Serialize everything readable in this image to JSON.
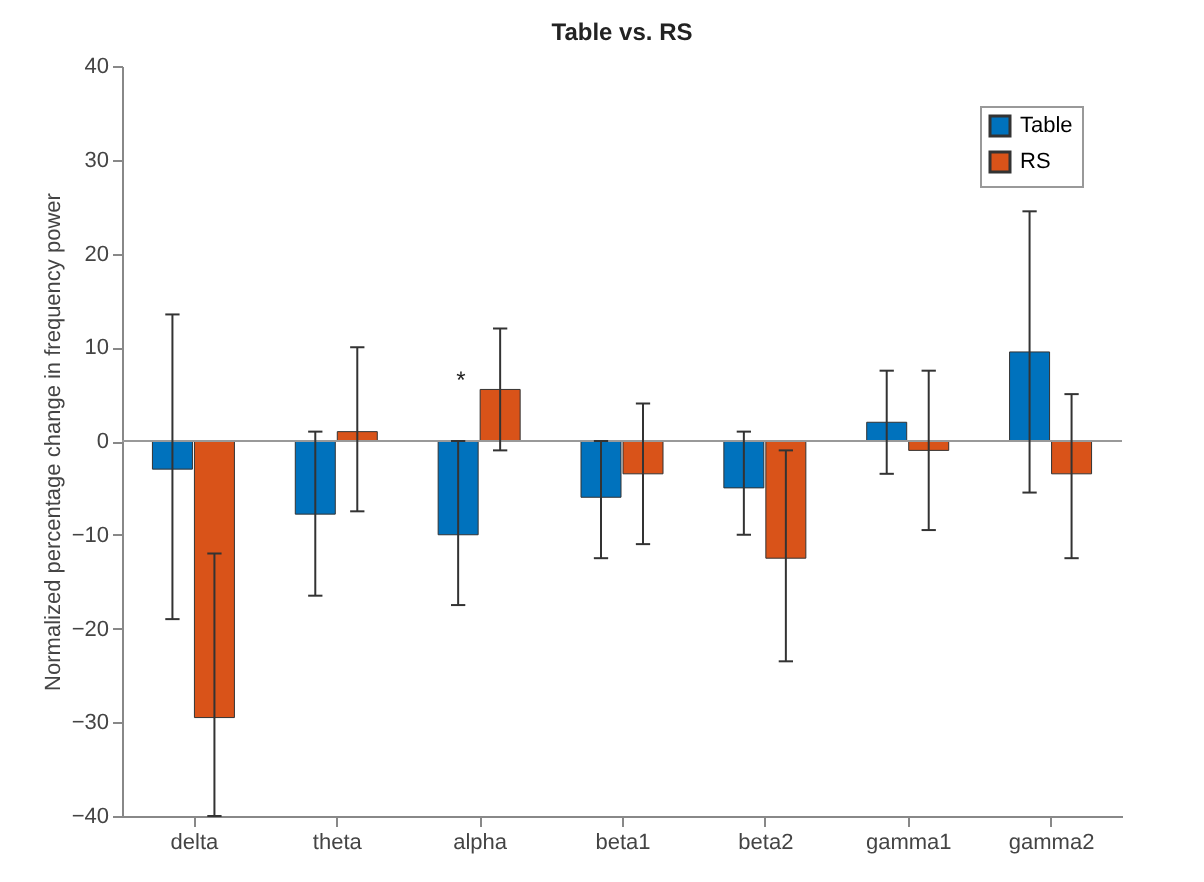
{
  "chart_data": {
    "type": "bar",
    "title": "Table vs. RS",
    "ylabel": "Normalized percentage change in frequency power",
    "categories": [
      "delta",
      "theta",
      "alpha",
      "beta1",
      "beta2",
      "gamma1",
      "gamma2"
    ],
    "series": [
      {
        "name": "Table",
        "color": "#0072bd",
        "values": [
          -3,
          -7.8,
          -10,
          -6,
          -5,
          2,
          9.5
        ],
        "errors": [
          [
            -19,
            13.5
          ],
          [
            -16.5,
            1
          ],
          [
            -17.5,
            0
          ],
          [
            -12.5,
            0
          ],
          [
            -10,
            1
          ],
          [
            -3.5,
            7.5
          ],
          [
            -5.5,
            24.5
          ]
        ]
      },
      {
        "name": "RS",
        "color": "#d95319",
        "values": [
          -29.5,
          1,
          5.5,
          -3.5,
          -12.5,
          -1,
          -3.5
        ],
        "errors": [
          [
            -40,
            -12
          ],
          [
            -7.5,
            10
          ],
          [
            -1,
            12
          ],
          [
            -11,
            4
          ],
          [
            -23.5,
            -1
          ],
          [
            -9.5,
            7.5
          ],
          [
            -12.5,
            5
          ]
        ]
      }
    ],
    "ylim": [
      -40,
      40
    ],
    "yticks": [
      -40,
      -30,
      -20,
      -10,
      0,
      10,
      20,
      30,
      40
    ],
    "ref_lines": [
      {
        "axis": "y",
        "value": 0,
        "color": "#999999"
      }
    ],
    "annotations": [
      {
        "text": "*",
        "x": "alpha",
        "y": 6.5
      }
    ],
    "grid": false,
    "legend": "top right"
  }
}
